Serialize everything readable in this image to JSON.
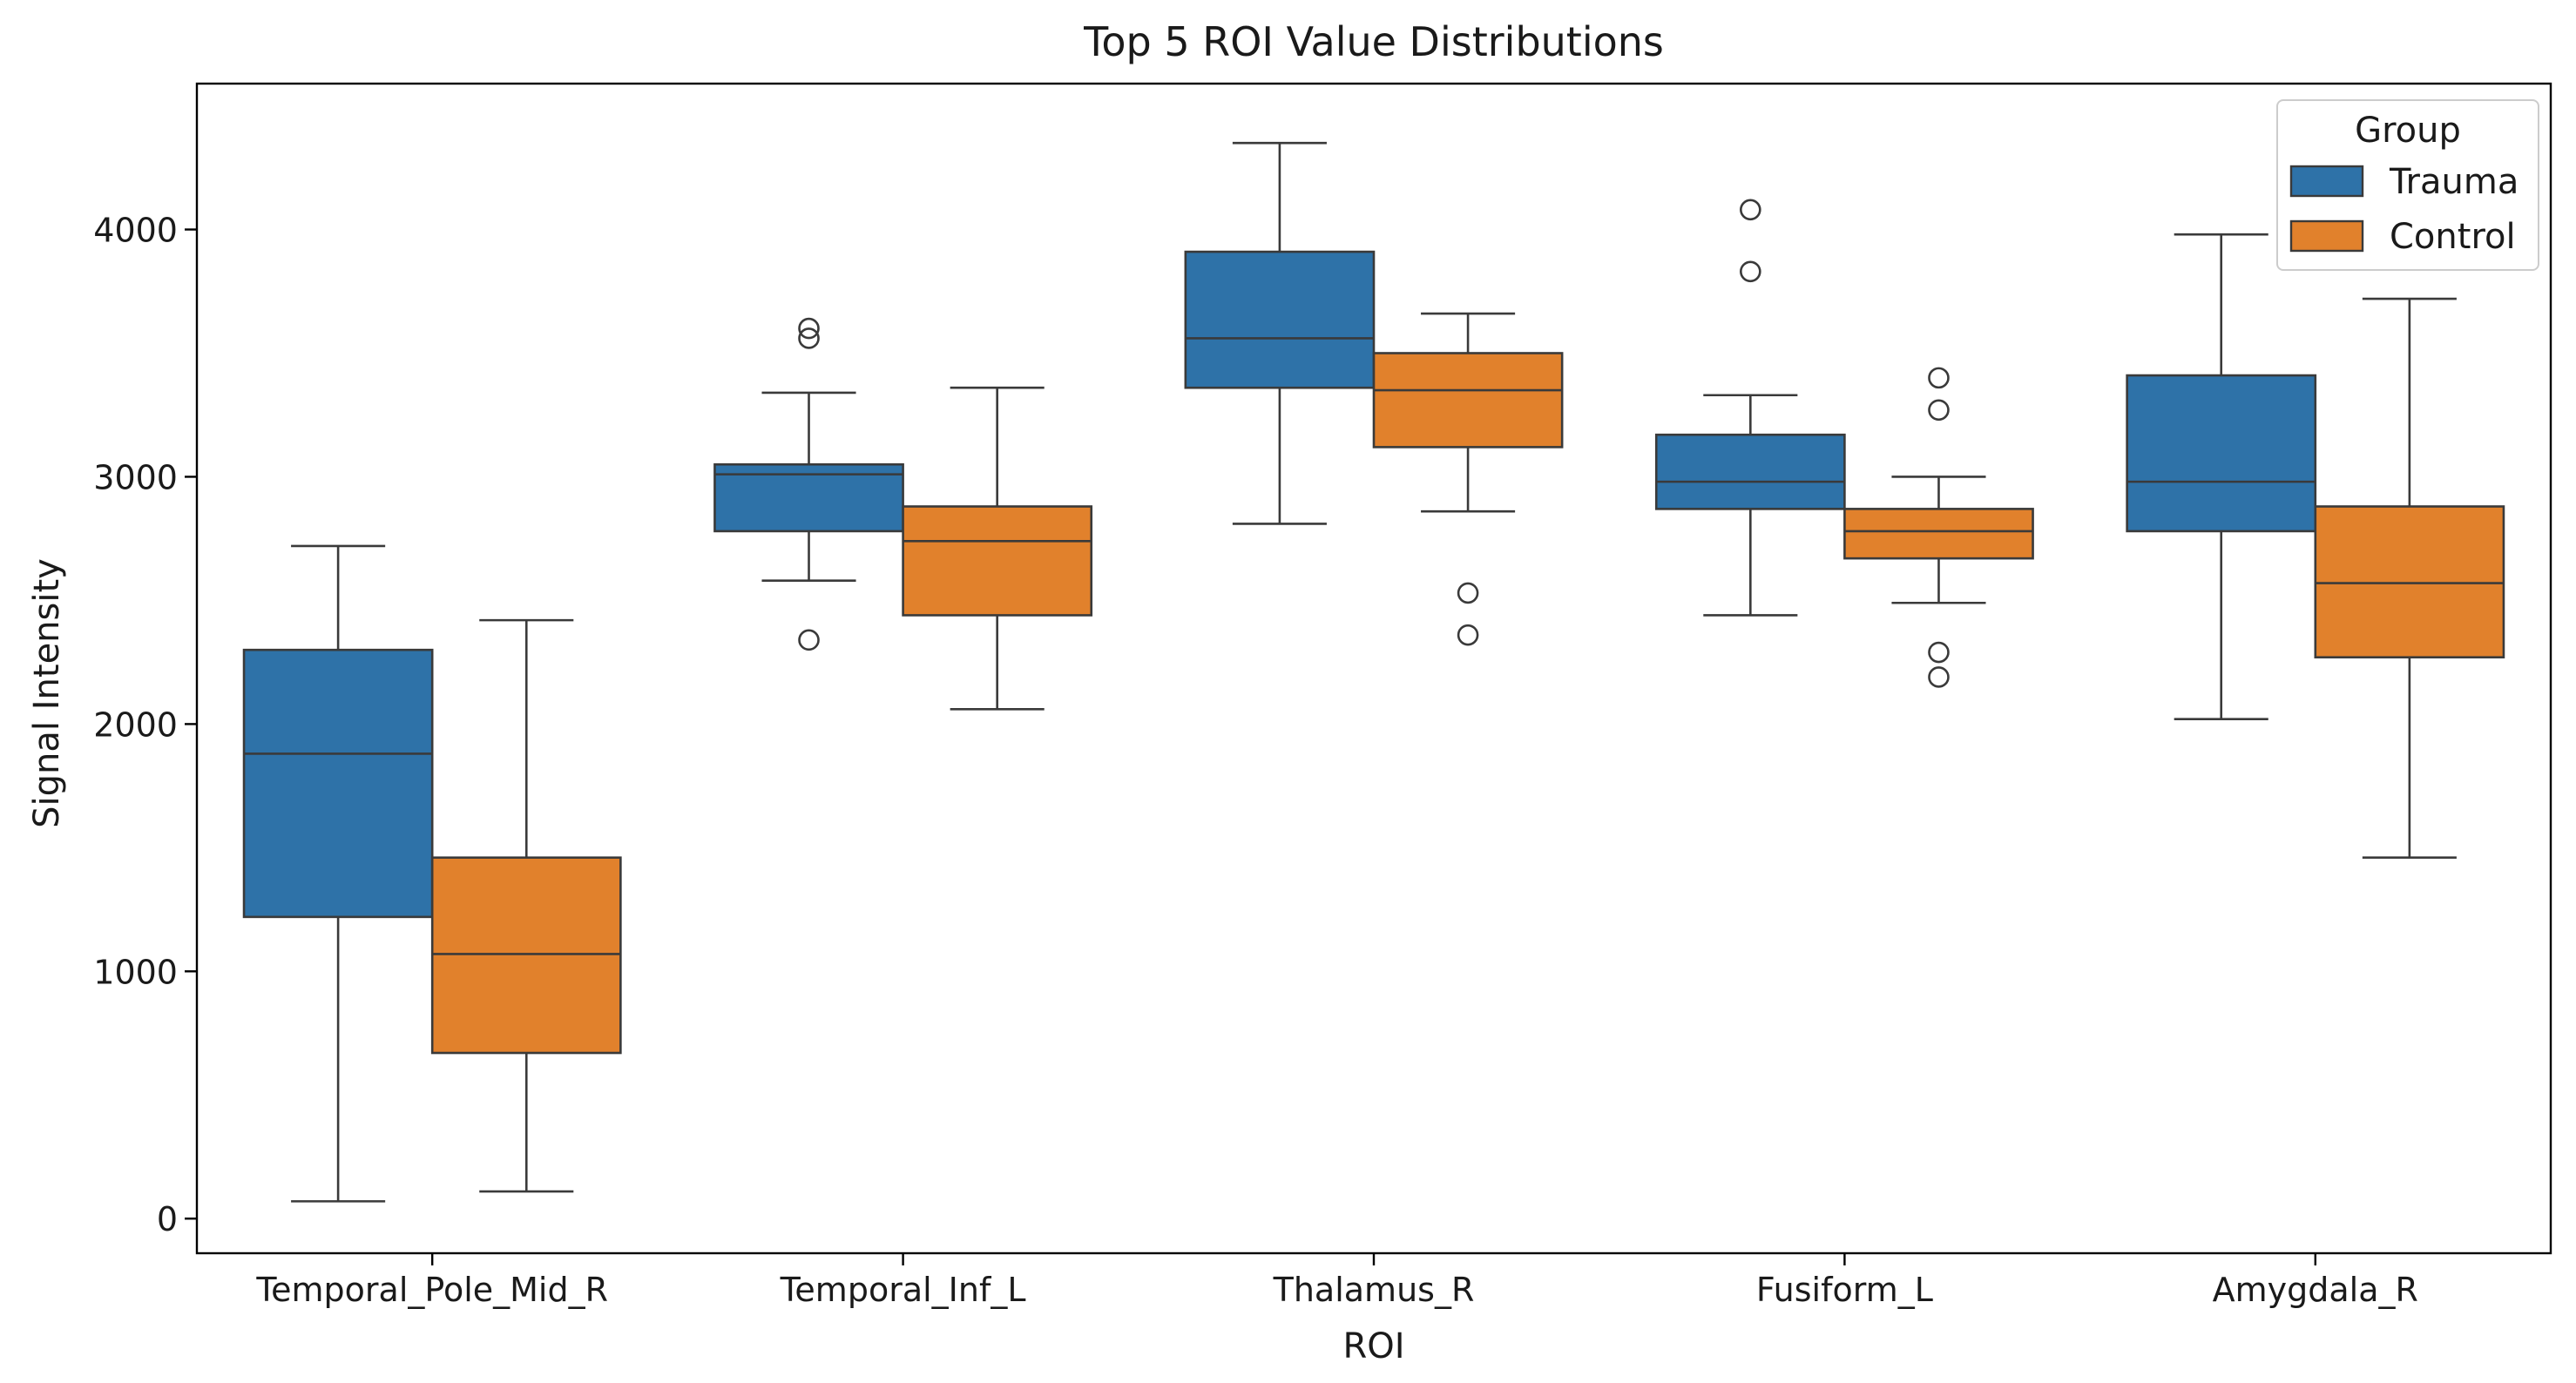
{
  "chart_data": {
    "type": "box",
    "title": "Top 5 ROI Value Distributions",
    "xlabel": "ROI",
    "ylabel": "Signal Intensity",
    "ylim": [
      -140,
      4590
    ],
    "yticks": [
      0,
      1000,
      2000,
      3000,
      4000
    ],
    "grid": false,
    "legend": {
      "title": "Group",
      "position": "top-right"
    },
    "categories": [
      "Temporal_Pole_Mid_R",
      "Temporal_Inf_L",
      "Thalamus_R",
      "Fusiform_L",
      "Amygdala_R"
    ],
    "series": [
      {
        "name": "Trauma",
        "color": "#2e72a8",
        "boxes": [
          {
            "whislo": 70,
            "q1": 1220,
            "med": 1880,
            "q3": 2300,
            "whishi": 2720,
            "fliers": []
          },
          {
            "whislo": 2580,
            "q1": 2780,
            "med": 3010,
            "q3": 3050,
            "whishi": 3340,
            "fliers": [
              2340,
              3560,
              3600
            ]
          },
          {
            "whislo": 2810,
            "q1": 3360,
            "med": 3560,
            "q3": 3910,
            "whishi": 4350,
            "fliers": []
          },
          {
            "whislo": 2440,
            "q1": 2870,
            "med": 2980,
            "q3": 3170,
            "whishi": 3330,
            "fliers": [
              3830,
              4080
            ]
          },
          {
            "whislo": 2020,
            "q1": 2780,
            "med": 2980,
            "q3": 3410,
            "whishi": 3980,
            "fliers": []
          }
        ]
      },
      {
        "name": "Control",
        "color": "#e1812c",
        "boxes": [
          {
            "whislo": 110,
            "q1": 670,
            "med": 1070,
            "q3": 1460,
            "whishi": 2420,
            "fliers": []
          },
          {
            "whislo": 2060,
            "q1": 2440,
            "med": 2740,
            "q3": 2880,
            "whishi": 3360,
            "fliers": []
          },
          {
            "whislo": 2860,
            "q1": 3120,
            "med": 3350,
            "q3": 3500,
            "whishi": 3660,
            "fliers": [
              2360,
              2530
            ]
          },
          {
            "whislo": 2490,
            "q1": 2670,
            "med": 2780,
            "q3": 2870,
            "whishi": 3000,
            "fliers": [
              2190,
              2290,
              3270,
              3400
            ]
          },
          {
            "whislo": 1460,
            "q1": 2270,
            "med": 2570,
            "q3": 2880,
            "whishi": 3720,
            "fliers": []
          }
        ]
      }
    ]
  }
}
